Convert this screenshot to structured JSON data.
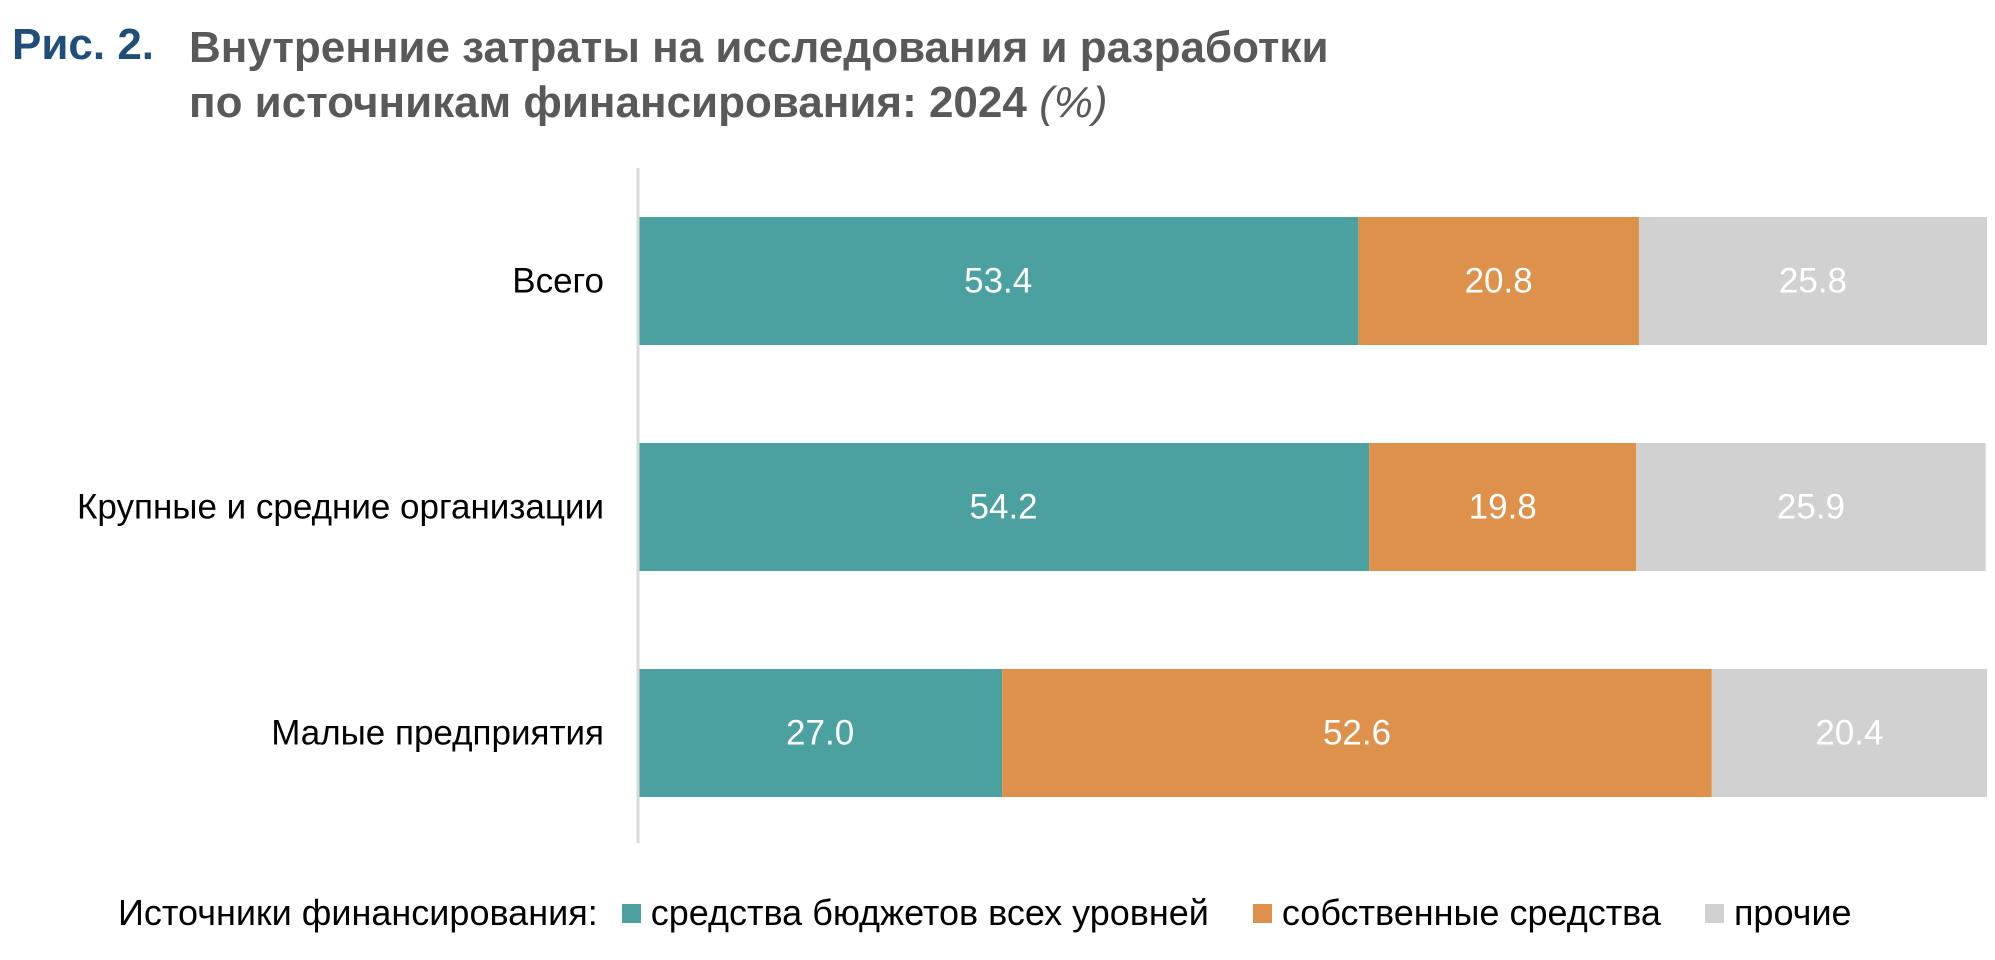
{
  "figure": {
    "number": "Рис. 2.",
    "title_line1": "Внутренние затраты на исследования и разработки",
    "title_line2": "по источникам финансирования: 2024",
    "title_unit": "(%)"
  },
  "legend": {
    "prefix": "Источники финансирования:"
  },
  "chart_data": {
    "type": "bar",
    "orientation": "horizontal",
    "stacked": true,
    "categories": [
      "Всего",
      "Крупные и средние организации",
      "Малые  предприятия"
    ],
    "series": [
      {
        "name": "средства бюджетов всех уровней",
        "color": "#4aa19f",
        "values": [
          53.4,
          54.2,
          27.0
        ],
        "labels": [
          "53.4",
          "54.2",
          "27.0"
        ]
      },
      {
        "name": "собственные средства",
        "color": "#de914a",
        "values": [
          20.8,
          19.8,
          52.6
        ],
        "labels": [
          "20.8",
          "19.8",
          "52.6"
        ]
      },
      {
        "name": "прочие",
        "color": "#d1d1d1",
        "values": [
          25.8,
          25.9,
          20.4
        ],
        "labels": [
          "25.8",
          "25.9",
          "20.4"
        ]
      }
    ],
    "xlim": [
      0,
      100
    ],
    "grid": false,
    "legend_position": "bottom",
    "data_label_color": "#ffffff",
    "axis_color": "#d9d9d9"
  }
}
